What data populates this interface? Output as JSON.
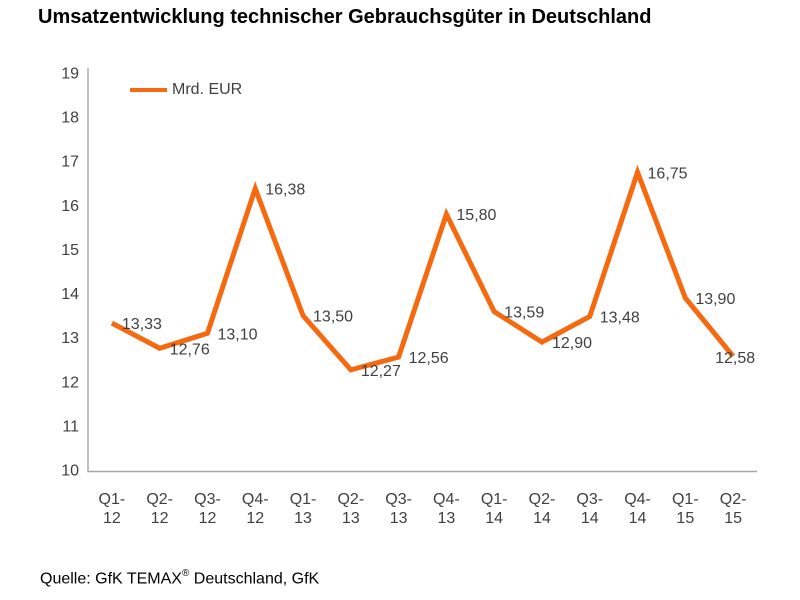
{
  "title": "Umsatzentwicklung technischer Gebrauchsgüter in Deutschland",
  "source": {
    "prefix": "Quelle: GfK TEMAX",
    "registered_mark": "®",
    "suffix": " Deutschland, GfK"
  },
  "colors": {
    "line": "#F7690F",
    "axis": "#A6A6A6",
    "tick_text": "#404040",
    "label_text": "#404040",
    "title_text": "#000000"
  },
  "chart_data": {
    "type": "line",
    "title": "Umsatzentwicklung technischer Gebrauchsgüter in Deutschland",
    "categories": [
      "Q1-12",
      "Q2-12",
      "Q3-12",
      "Q4-12",
      "Q1-13",
      "Q2-13",
      "Q3-13",
      "Q4-13",
      "Q1-14",
      "Q2-14",
      "Q3-14",
      "Q4-14",
      "Q1-15",
      "Q2-15"
    ],
    "series": [
      {
        "name": "Mrd. EUR",
        "values": [
          13.33,
          12.76,
          13.1,
          16.38,
          13.5,
          12.27,
          12.56,
          15.8,
          13.59,
          12.9,
          13.48,
          16.75,
          13.9,
          12.58
        ],
        "value_labels": [
          "13,33",
          "12,76",
          "13,10",
          "16,38",
          "13,50",
          "12,27",
          "12,56",
          "15,80",
          "13,59",
          "12,90",
          "13,48",
          "16,75",
          "13,90",
          "12,58"
        ],
        "color": "#F7690F"
      }
    ],
    "xlabel": "",
    "ylabel": "",
    "ylim": [
      10,
      19
    ],
    "ytick_step": 1,
    "grid": false,
    "legend": {
      "label": "Mrd. EUR",
      "position": "top-left-inside"
    },
    "source": "Quelle: GfK TEMAX® Deutschland, GfK"
  }
}
